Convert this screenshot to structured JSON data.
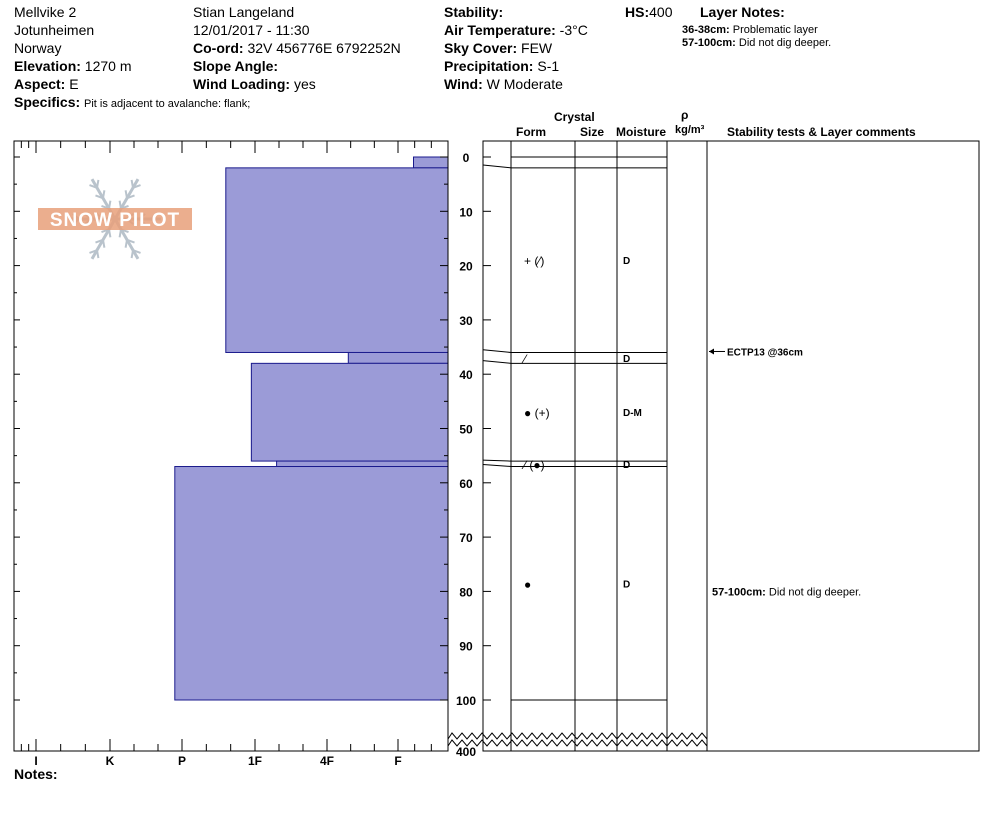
{
  "header": {
    "col1": [
      "Mellvike 2",
      "Jotunheimen",
      "Norway"
    ],
    "elevation": {
      "label": "Elevation:",
      "value": "1270 m"
    },
    "aspect": {
      "label": "Aspect:",
      "value": "E"
    },
    "specifics": {
      "label": "Specifics:",
      "value": "Pit is adjacent to avalanche: flank;"
    },
    "observer": "Stian Langeland",
    "datetime": "12/01/2017 - 11:30",
    "coord": {
      "label": "Co-ord:",
      "value": "32V 456776E 6792252N"
    },
    "slope": {
      "label": "Slope Angle:",
      "value": ""
    },
    "wind_loading": {
      "label": "Wind Loading:",
      "value": "yes"
    },
    "stability": {
      "label": "Stability:",
      "value": ""
    },
    "air_temp": {
      "label": "Air Temperature:",
      "value": "-3°C"
    },
    "sky_cover": {
      "label": "Sky Cover:",
      "value": "FEW"
    },
    "precipitation": {
      "label": "Precipitation:",
      "value": "S-1"
    },
    "wind": {
      "label": "Wind:",
      "value": "W Moderate"
    },
    "hs": {
      "label": "HS:",
      "value": "400"
    },
    "layer_notes": {
      "label": "Layer Notes:",
      "items": [
        {
          "range": "36-38cm:",
          "text": "Problematic layer"
        },
        {
          "range": "57-100cm:",
          "text": "Did not dig deeper."
        }
      ]
    }
  },
  "logo_text": "SNOW PILOT",
  "notes_label": "Notes:",
  "columns": {
    "crystal": "Crystal",
    "form": "Form",
    "size": "Size",
    "moisture": "Moisture",
    "rho": "ρ",
    "density_unit": "kg/m³",
    "stability_comments": "Stability tests & Layer comments"
  },
  "chart_data": {
    "type": "bar",
    "x_categories": [
      "I",
      "K",
      "P",
      "1F",
      "4F",
      "F"
    ],
    "y_ticks": [
      "0",
      "10",
      "20",
      "30",
      "40",
      "50",
      "60",
      "70",
      "80",
      "90",
      "100"
    ],
    "y_break_label": "400",
    "ylim": [
      0,
      100
    ],
    "hardness_layers": [
      {
        "top": 0,
        "bottom": 2,
        "hardness": 0.69
      },
      {
        "top": 2,
        "bottom": 36,
        "hardness": 3.4
      },
      {
        "top": 36,
        "bottom": 38,
        "hardness": 1.7
      },
      {
        "top": 38,
        "bottom": 56,
        "hardness": 3.05
      },
      {
        "top": 56,
        "bottom": 57,
        "hardness": 2.7
      },
      {
        "top": 57,
        "bottom": 100,
        "hardness": 4.1
      }
    ],
    "layers": [
      {
        "top": 0,
        "bottom": 2,
        "form": "",
        "moisture": ""
      },
      {
        "top": 2,
        "bottom": 36,
        "form": "+ (⁄)",
        "moisture": "D"
      },
      {
        "top": 36,
        "bottom": 38,
        "form": "⁄",
        "moisture": "D"
      },
      {
        "top": 38,
        "bottom": 56,
        "form": "● (+)",
        "moisture": "D-M"
      },
      {
        "top": 56,
        "bottom": 57,
        "form": "⁄ (●)",
        "moisture": "D"
      },
      {
        "top": 57,
        "bottom": 100,
        "form": "●",
        "moisture": "D"
      }
    ],
    "stability_tests": [
      {
        "depth": 36,
        "text": "ECTP13 @36cm"
      }
    ],
    "layer_comments": [
      {
        "depth": 80,
        "range": "57-100cm:",
        "text": "Did not dig deeper."
      }
    ],
    "colors": {
      "bar_fill": "#9b9bd7",
      "bar_stroke": "#1a1a8c",
      "logo": "#e8a07a"
    }
  }
}
